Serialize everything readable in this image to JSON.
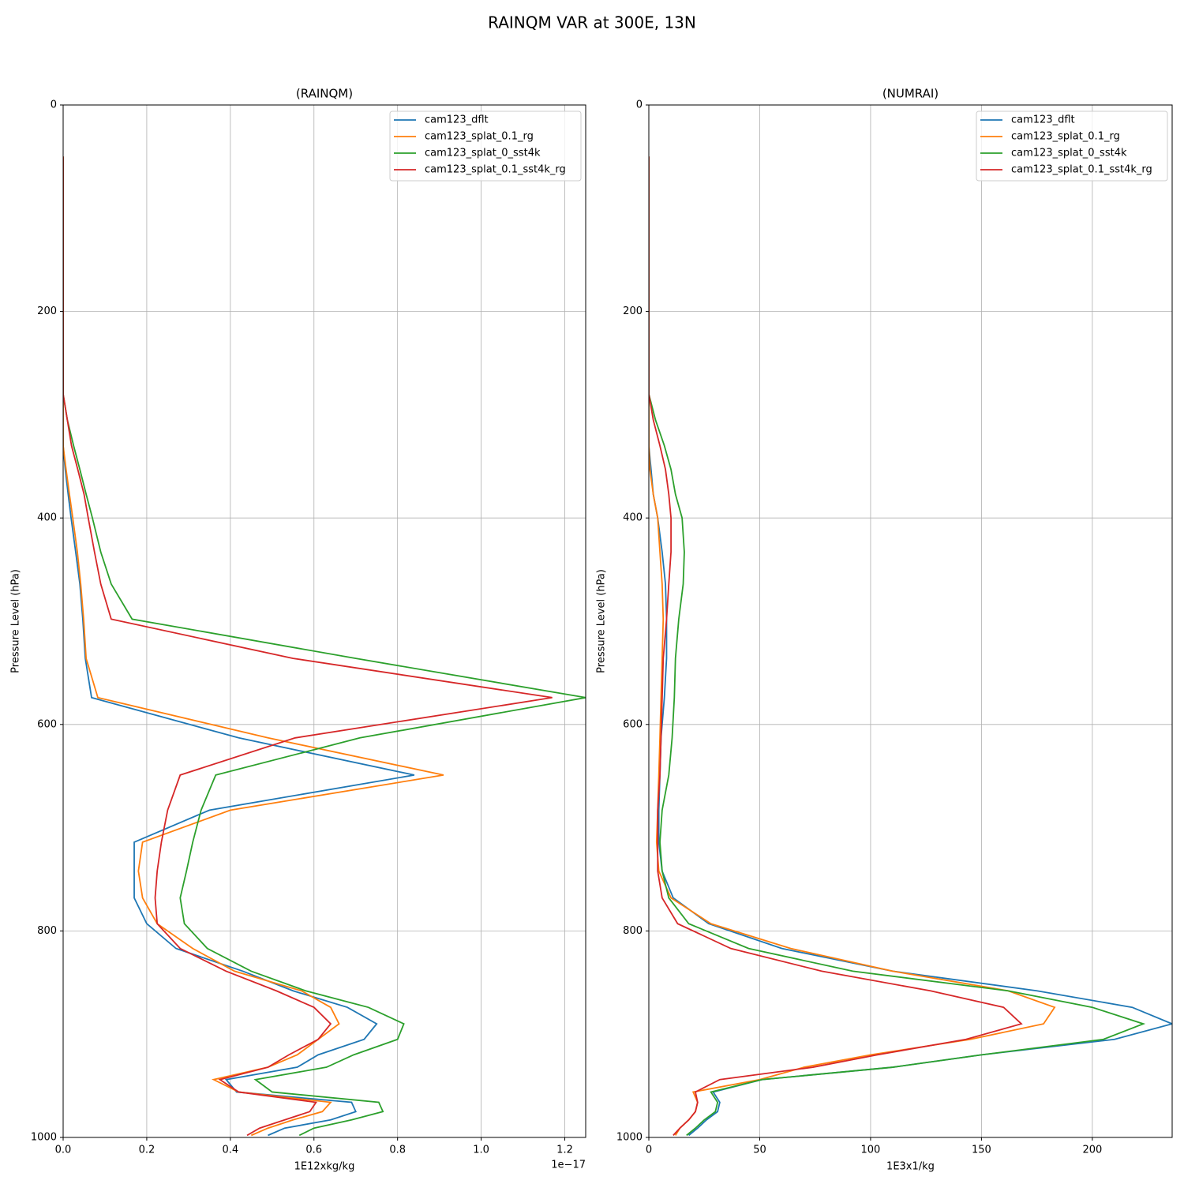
{
  "figure_title": "RAINQM VAR at 300E, 13N",
  "chart_data": [
    {
      "type": "line",
      "title": "(RAINQM)",
      "xlabel": "1E12xkg/kg",
      "ylabel": "Pressure Level (hPa)",
      "x_offset_label": "1e−17",
      "xlim": [
        0,
        1.25
      ],
      "xticks": [
        {
          "value": 0,
          "label": "0.0"
        },
        0.2,
        0.4,
        0.6,
        0.8,
        {
          "value": 1,
          "label": "1.0"
        },
        1.2
      ],
      "ylim": [
        1000,
        0
      ],
      "yticks": [
        0,
        200,
        400,
        600,
        800,
        1000
      ],
      "grid": true,
      "legend": "upper right",
      "y": [
        50,
        150,
        250,
        280,
        305,
        330,
        353,
        377,
        400,
        433,
        464,
        498,
        536,
        574,
        613,
        649,
        683,
        714,
        742,
        768,
        793,
        817,
        839,
        858,
        874,
        890,
        905,
        920,
        932,
        944,
        956,
        966,
        975,
        983,
        991,
        998
      ],
      "series": [
        {
          "name": "cam123_dflt",
          "color": "#1f77b4",
          "values": [
            0,
            0,
            0,
            0,
            0,
            0,
            0.005,
            0.012,
            0.019,
            0.03,
            0.04,
            0.047,
            0.053,
            0.068,
            0.42,
            0.84,
            0.35,
            0.17,
            0.17,
            0.17,
            0.2,
            0.27,
            0.43,
            0.55,
            0.68,
            0.75,
            0.72,
            0.61,
            0.56,
            0.39,
            0.415,
            0.69,
            0.7,
            0.64,
            0.53,
            0.49
          ]
        },
        {
          "name": "cam123_splat_0.1_rg",
          "color": "#ff7f0e",
          "values": [
            0,
            0,
            0,
            0,
            0,
            0,
            0.007,
            0.015,
            0.023,
            0.034,
            0.042,
            0.049,
            0.055,
            0.083,
            0.49,
            0.91,
            0.4,
            0.19,
            0.18,
            0.19,
            0.225,
            0.31,
            0.41,
            0.57,
            0.64,
            0.66,
            0.61,
            0.56,
            0.49,
            0.36,
            0.42,
            0.64,
            0.62,
            0.55,
            0.49,
            0.45
          ]
        },
        {
          "name": "cam123_splat_0_sst4k",
          "color": "#2ca02c",
          "values": [
            0,
            0,
            0,
            0,
            0.01,
            0.025,
            0.04,
            0.055,
            0.07,
            0.09,
            0.115,
            0.165,
            0.7,
            1.25,
            0.71,
            0.365,
            0.33,
            0.31,
            0.295,
            0.28,
            0.29,
            0.345,
            0.45,
            0.58,
            0.73,
            0.815,
            0.8,
            0.695,
            0.63,
            0.46,
            0.5,
            0.755,
            0.765,
            0.69,
            0.6,
            0.565
          ]
        },
        {
          "name": "cam123_splat_0.1_sst4k_rg",
          "color": "#d62728",
          "values": [
            0,
            0,
            0,
            0,
            0.01,
            0.02,
            0.035,
            0.05,
            0.06,
            0.075,
            0.09,
            0.115,
            0.55,
            1.17,
            0.555,
            0.28,
            0.25,
            0.235,
            0.225,
            0.22,
            0.225,
            0.28,
            0.39,
            0.51,
            0.6,
            0.64,
            0.61,
            0.54,
            0.49,
            0.375,
            0.42,
            0.605,
            0.59,
            0.53,
            0.47,
            0.44
          ]
        }
      ]
    },
    {
      "type": "line",
      "title": "(NUMRAI)",
      "xlabel": "1E3x1/kg",
      "ylabel": "Pressure Level (hPa)",
      "xlim": [
        0,
        236
      ],
      "xticks": [
        0,
        50,
        100,
        150,
        200
      ],
      "ylim": [
        1000,
        0
      ],
      "yticks": [
        0,
        200,
        400,
        600,
        800,
        1000
      ],
      "grid": true,
      "legend": "upper right",
      "y": [
        50,
        150,
        250,
        280,
        305,
        330,
        353,
        377,
        400,
        433,
        464,
        498,
        536,
        574,
        613,
        649,
        683,
        714,
        742,
        768,
        793,
        817,
        839,
        858,
        874,
        890,
        905,
        920,
        932,
        944,
        956,
        966,
        975,
        983,
        991,
        998
      ],
      "series": [
        {
          "name": "cam123_dflt",
          "color": "#1f77b4",
          "values": [
            0,
            0,
            0,
            0,
            0,
            0,
            1,
            2,
            4,
            6,
            7.5,
            8,
            8,
            7,
            5.5,
            5,
            4.5,
            4.5,
            6,
            11,
            27,
            60,
            110,
            175,
            218,
            236,
            210,
            150,
            110,
            51,
            29,
            32,
            31,
            26,
            22,
            18
          ]
        },
        {
          "name": "cam123_splat_0.1_rg",
          "color": "#ff7f0e",
          "values": [
            0,
            0,
            0,
            0,
            0,
            0,
            0.5,
            2,
            4,
            5,
            6,
            6.5,
            6,
            5.5,
            5,
            4.5,
            4,
            3.5,
            4.5,
            10,
            28,
            64,
            110,
            162,
            183,
            178,
            145,
            100,
            70,
            50,
            20,
            22,
            21,
            18,
            14,
            12
          ]
        },
        {
          "name": "cam123_splat_0_sst4k",
          "color": "#2ca02c",
          "values": [
            0,
            0,
            0,
            0,
            3,
            7,
            10,
            12,
            15,
            16,
            15.5,
            13.5,
            12,
            11.5,
            10.5,
            9,
            6,
            5,
            6,
            9,
            18,
            45,
            92,
            162,
            200,
            223,
            205,
            150,
            110,
            51,
            28,
            31,
            30,
            25,
            21,
            17
          ]
        },
        {
          "name": "cam123_splat_0.1_sst4k_rg",
          "color": "#d62728",
          "values": [
            0,
            0,
            0,
            0,
            2,
            5,
            7.5,
            9,
            10,
            10,
            9,
            8,
            6.5,
            6,
            5.5,
            5,
            4,
            4,
            4,
            6,
            13,
            37,
            78,
            127,
            160,
            168,
            143,
            103,
            74,
            32,
            21,
            22,
            21,
            18,
            14,
            11
          ]
        }
      ]
    }
  ]
}
